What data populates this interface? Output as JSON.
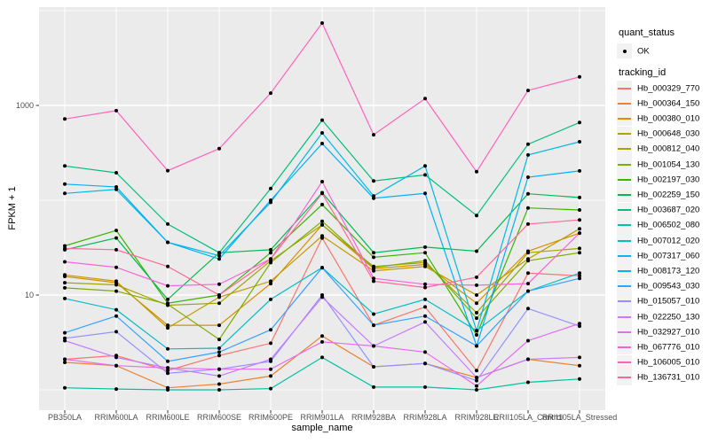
{
  "chart_data": {
    "type": "line",
    "title": "",
    "xlabel": "sample_name",
    "ylabel": "FPKM + 1",
    "y_scale": "log10",
    "panel_bg": "#ebebeb",
    "grid_color": "#ffffff",
    "point_color": "#000000",
    "ylim": [
      0.6,
      11000
    ],
    "y_major_ticks": [
      {
        "label": "1000",
        "value": 1000
      },
      {
        "label": "10",
        "value": 10
      }
    ],
    "y_minor_gridlines": [
      1,
      100,
      10000
    ],
    "x_categories": [
      "PB350LA",
      "RRIM600LA",
      "RRIM600LE",
      "RRIM600SE",
      "RRIM600PE",
      "RRIM901LA",
      "RRIM928BA",
      "RRIM928LA",
      "RRIM928LE",
      "RRII105LA_Control",
      "RRII105LA_Stressed"
    ],
    "legend": {
      "quant_status_title": "quant_status",
      "quant_status_items": [
        {
          "label": "OK",
          "marker": "point",
          "color": "#000000"
        }
      ],
      "tracking_id_title": "tracking_id"
    },
    "series": [
      {
        "name": "Hb_000329_770",
        "color": "#F8766D",
        "values": [
          2.1,
          2.3,
          1.6,
          2.3,
          3.1,
          40,
          4.8,
          7.5,
          1.6,
          17,
          16
        ]
      },
      {
        "name": "Hb_000364_150",
        "color": "#EA8331",
        "values": [
          1.95,
          1.8,
          1.05,
          1.15,
          1.4,
          3.7,
          1.75,
          1.9,
          1.35,
          2.1,
          1.8
        ]
      },
      {
        "name": "Hb_000380_010",
        "color": "#D89000",
        "values": [
          15.7,
          13.5,
          4.8,
          4.8,
          13.2,
          55,
          19,
          21,
          8.2,
          29,
          45
        ]
      },
      {
        "name": "Hb_000648_030",
        "color": "#C09B00",
        "values": [
          16.3,
          14,
          4.5,
          9.5,
          14,
          42,
          18,
          20,
          10,
          24,
          50
        ]
      },
      {
        "name": "Hb_000812_040",
        "color": "#A3A500",
        "values": [
          13.5,
          12.8,
          7.8,
          8.2,
          23,
          55,
          20,
          22,
          6.5,
          28,
          31
        ]
      },
      {
        "name": "Hb_001054_130",
        "color": "#7CAE00",
        "values": [
          11.9,
          11,
          8,
          3.4,
          22,
          60,
          19.5,
          23,
          5.7,
          23,
          28
        ]
      },
      {
        "name": "Hb_002197_030",
        "color": "#39B600",
        "values": [
          33,
          48,
          8.2,
          10,
          28,
          90,
          25,
          28,
          3.8,
          83,
          79
        ]
      },
      {
        "name": "Hb_002259_150",
        "color": "#00BB4E",
        "values": [
          30,
          40,
          9,
          28,
          30,
          120,
          28,
          32,
          29,
          117,
          107
        ]
      },
      {
        "name": "Hb_003687_020",
        "color": "#00BF7D",
        "values": [
          230,
          195,
          56,
          28,
          133,
          700,
          160,
          185,
          69,
          390,
          660
        ]
      },
      {
        "name": "Hb_006502_080",
        "color": "#00C1A3",
        "values": [
          1.05,
          1.02,
          1.0,
          1.0,
          1.03,
          2.2,
          1.07,
          1.07,
          1.0,
          1.2,
          1.3
        ]
      },
      {
        "name": "Hb_007012_020",
        "color": "#00BFC4",
        "values": [
          9.2,
          7,
          2.7,
          2.75,
          9,
          19.5,
          6.3,
          9,
          4.2,
          11,
          17
        ]
      },
      {
        "name": "Hb_007317_060",
        "color": "#00BAE0",
        "values": [
          118,
          130,
          36,
          26,
          95,
          513,
          111,
          230,
          4.2,
          300,
          414
        ]
      },
      {
        "name": "Hb_008173_120",
        "color": "#00B0F6",
        "values": [
          148,
          138,
          36,
          24,
          100,
          396,
          105,
          118,
          2.9,
          175,
          204
        ]
      },
      {
        "name": "Hb_009543_030",
        "color": "#35A2FF",
        "values": [
          4.0,
          6.0,
          2.0,
          2.5,
          4.3,
          19.4,
          4.8,
          6.0,
          2.9,
          11,
          15
        ]
      },
      {
        "name": "Hb_015057_010",
        "color": "#9590FF",
        "values": [
          3.5,
          4.1,
          1.5,
          1.65,
          2.0,
          10,
          1.75,
          1.9,
          1.25,
          7.2,
          4.7
        ]
      },
      {
        "name": "Hb_022250_130",
        "color": "#C77CFF",
        "values": [
          3.3,
          2.2,
          1.7,
          1.4,
          2.1,
          9.5,
          2.9,
          5.2,
          1.35,
          2.1,
          2.2
        ]
      },
      {
        "name": "Hb_032927_010",
        "color": "#E76BF3",
        "values": [
          2.1,
          1.8,
          1.7,
          1.65,
          1.65,
          3.2,
          2.9,
          2.5,
          1.1,
          3.3,
          5.0
        ]
      },
      {
        "name": "Hb_067776_010",
        "color": "#FA62DB",
        "values": [
          22.4,
          19.6,
          12.5,
          13,
          24,
          157,
          15,
          13,
          12.7,
          13.2,
          45
        ]
      },
      {
        "name": "Hb_106005_010",
        "color": "#FF62BC",
        "values": [
          720,
          880,
          205,
          350,
          1350,
          7400,
          490,
          1180,
          200,
          1440,
          2000
        ]
      },
      {
        "name": "Hb_136731_010",
        "color": "#FF6A98",
        "values": [
          31,
          30,
          20,
          10,
          24,
          118,
          14,
          12,
          15.4,
          56,
          62
        ]
      }
    ]
  }
}
